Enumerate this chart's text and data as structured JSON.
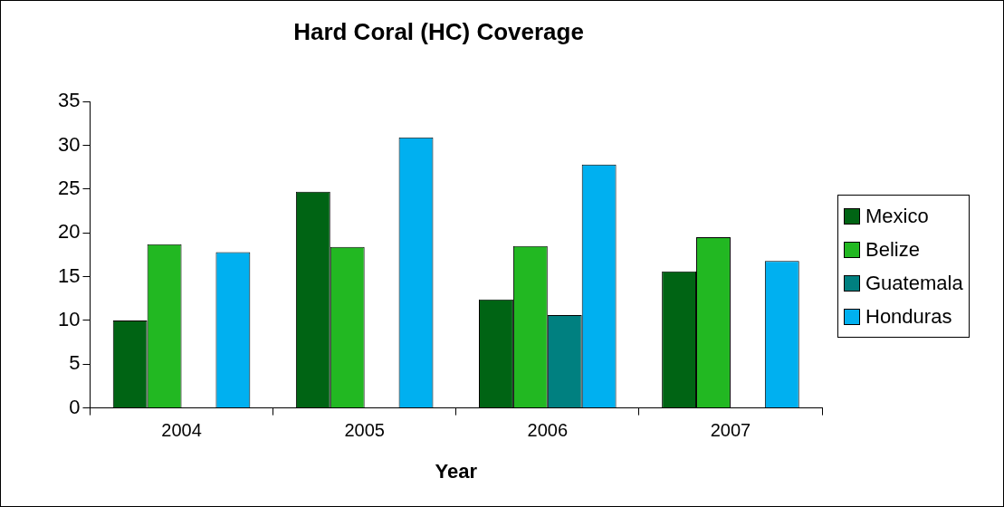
{
  "chart_data": {
    "type": "bar",
    "title": "Hard Coral (HC) Coverage",
    "xlabel": "Year",
    "categories": [
      "2004",
      "2005",
      "2006",
      "2007"
    ],
    "series": [
      {
        "name": "Mexico",
        "color": "#006414",
        "values": [
          10,
          24.7,
          12.4,
          15.6
        ]
      },
      {
        "name": "Belize",
        "color": "#22b822",
        "values": [
          18.7,
          18.4,
          18.5,
          19.5
        ]
      },
      {
        "name": "Guatemala",
        "color": "#008080",
        "values": [
          null,
          null,
          10.6,
          null
        ]
      },
      {
        "name": "Honduras",
        "color": "#00b0f0",
        "values": [
          17.8,
          30.9,
          27.8,
          16.8
        ]
      }
    ],
    "ylim": [
      0,
      35
    ],
    "yticks": [
      0,
      5,
      10,
      15,
      20,
      25,
      30,
      35
    ],
    "grid": false,
    "legend": "right"
  }
}
